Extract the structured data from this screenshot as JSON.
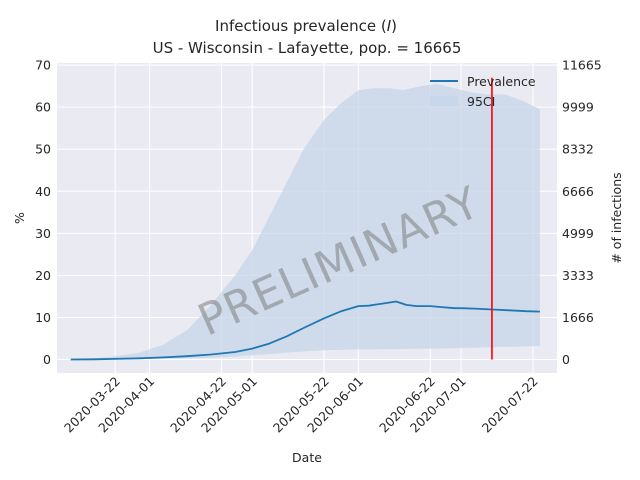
{
  "chart_data": {
    "type": "line",
    "title_line1": "Infectious prevalence (",
    "title_symbol": "I",
    "title_line1_end": ")",
    "title_line2": "US - Wisconsin - Lafayette, pop. = 16665",
    "xlabel": "Date",
    "ylabel_left": "%",
    "ylabel_right": "# of infections",
    "x_range": [
      "2020-03-05",
      "2020-07-29"
    ],
    "ylim": [
      -3.2,
      70.5
    ],
    "y_ticks_left": [
      0,
      10,
      20,
      30,
      40,
      50,
      60,
      70
    ],
    "y_ticks_right": [
      0,
      1666,
      3333,
      4999,
      6666,
      8332,
      9999,
      11665
    ],
    "x_ticks": [
      "2020-03-22",
      "2020-04-01",
      "2020-04-22",
      "2020-05-01",
      "2020-05-22",
      "2020-06-01",
      "2020-06-22",
      "2020-07-01",
      "2020-07-22"
    ],
    "grid": true,
    "legend_position": "top-right",
    "legend": [
      "Prevalence",
      "95CI"
    ],
    "colors": {
      "prevalence": "#1f77b4",
      "ci": "#c6d6e8",
      "vline": "#ff0000",
      "background": "#eaeaf2",
      "grid": "#ffffff"
    },
    "vline_date": "2020-07-10",
    "watermark": "PRELIMINARY",
    "series": [
      {
        "name": "Prevalence",
        "x": [
          "2020-03-09",
          "2020-03-16",
          "2020-03-22",
          "2020-03-29",
          "2020-04-05",
          "2020-04-12",
          "2020-04-19",
          "2020-04-26",
          "2020-05-01",
          "2020-05-06",
          "2020-05-11",
          "2020-05-16",
          "2020-05-22",
          "2020-05-27",
          "2020-06-01",
          "2020-06-04",
          "2020-06-08",
          "2020-06-12",
          "2020-06-15",
          "2020-06-18",
          "2020-06-22",
          "2020-06-25",
          "2020-06-29",
          "2020-07-01",
          "2020-07-05",
          "2020-07-10",
          "2020-07-15",
          "2020-07-20",
          "2020-07-24"
        ],
        "y": [
          0.0,
          0.05,
          0.15,
          0.3,
          0.5,
          0.8,
          1.2,
          1.8,
          2.6,
          3.8,
          5.5,
          7.5,
          9.8,
          11.5,
          12.7,
          12.8,
          13.3,
          13.8,
          13.0,
          12.7,
          12.7,
          12.5,
          12.2,
          12.2,
          12.1,
          11.9,
          11.7,
          11.5,
          11.4
        ]
      },
      {
        "name": "95CI",
        "x": [
          "2020-03-09",
          "2020-03-16",
          "2020-03-22",
          "2020-03-29",
          "2020-04-05",
          "2020-04-12",
          "2020-04-19",
          "2020-04-26",
          "2020-05-01",
          "2020-05-06",
          "2020-05-11",
          "2020-05-16",
          "2020-05-22",
          "2020-05-27",
          "2020-06-01",
          "2020-06-05",
          "2020-06-10",
          "2020-06-14",
          "2020-06-19",
          "2020-06-24",
          "2020-06-29",
          "2020-07-04",
          "2020-07-09",
          "2020-07-14",
          "2020-07-19",
          "2020-07-24"
        ],
        "lower": [
          0.0,
          0.0,
          0.05,
          0.1,
          0.15,
          0.25,
          0.4,
          0.7,
          1.0,
          1.3,
          1.6,
          1.9,
          2.2,
          2.3,
          2.4,
          2.4,
          2.5,
          2.5,
          2.6,
          2.6,
          2.7,
          2.8,
          2.9,
          3.0,
          3.1,
          3.2
        ],
        "upper": [
          0.1,
          0.3,
          0.8,
          1.6,
          3.5,
          7.0,
          13.0,
          20.0,
          26.0,
          34.0,
          42.0,
          50.0,
          57.0,
          61.0,
          64.0,
          64.5,
          64.5,
          64.0,
          65.0,
          65.5,
          64.5,
          63.5,
          63.0,
          63.0,
          61.5,
          59.5
        ]
      }
    ]
  }
}
